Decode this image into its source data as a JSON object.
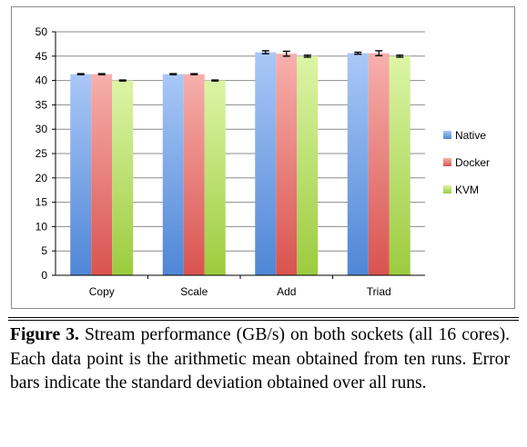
{
  "chart_data": {
    "type": "bar",
    "categories": [
      "Copy",
      "Scale",
      "Add",
      "Triad"
    ],
    "series": [
      {
        "name": "Native",
        "values": [
          41.3,
          41.3,
          45.8,
          45.6
        ],
        "errors": [
          0.1,
          0.1,
          0.3,
          0.2
        ],
        "color_top": "#a9c8f7",
        "color_bottom": "#4f86d6"
      },
      {
        "name": "Docker",
        "values": [
          41.3,
          41.3,
          45.5,
          45.6
        ],
        "errors": [
          0.1,
          0.1,
          0.5,
          0.5
        ],
        "color_top": "#f7b0ac",
        "color_bottom": "#d9534f"
      },
      {
        "name": "KVM",
        "values": [
          40.0,
          40.0,
          45.0,
          45.0
        ],
        "errors": [
          0.1,
          0.1,
          0.2,
          0.2
        ],
        "color_top": "#dcf5a6",
        "color_bottom": "#9ccb3e"
      }
    ],
    "ylim": [
      0,
      50
    ],
    "yticks": [
      0,
      5,
      10,
      15,
      20,
      25,
      30,
      35,
      40,
      45,
      50
    ],
    "grid": true,
    "legend_position": "right",
    "error_bars": true
  },
  "caption": {
    "label": "Figure 3.",
    "text": "Stream performance (GB/s) on both sockets (all 16 cores). Each data point is the arithmetic mean obtained from ten runs. Error bars indicate the standard deviation obtained over all runs."
  }
}
